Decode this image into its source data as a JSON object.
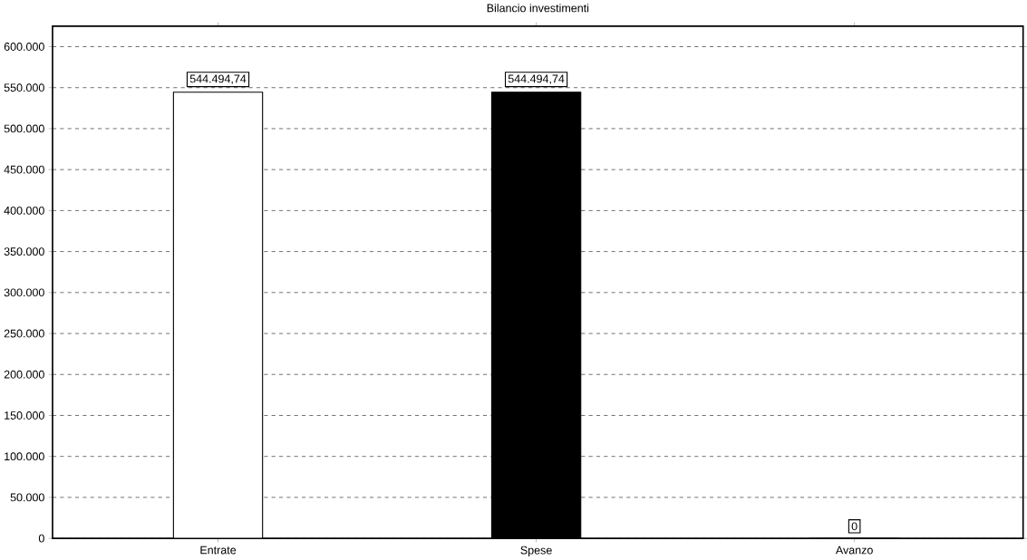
{
  "chart_data": {
    "type": "bar",
    "title": "Bilancio investimenti",
    "categories": [
      "Entrate",
      "Spese",
      "Avanzo"
    ],
    "values": [
      544494.74,
      544494.74,
      0
    ],
    "colors": [
      "#ffffff",
      "#000000",
      "#ffffff"
    ],
    "value_labels": [
      "544.494,74",
      "544.494,74",
      "0"
    ],
    "ylim": [
      0,
      625000
    ],
    "yticks": [
      {
        "value": 0,
        "label": "0"
      },
      {
        "value": 50000,
        "label": "50.000"
      },
      {
        "value": 100000,
        "label": "100.000"
      },
      {
        "value": 150000,
        "label": "150.000"
      },
      {
        "value": 200000,
        "label": "200.000"
      },
      {
        "value": 250000,
        "label": "250.000"
      },
      {
        "value": 300000,
        "label": "300.000"
      },
      {
        "value": 350000,
        "label": "350.000"
      },
      {
        "value": 400000,
        "label": "400.000"
      },
      {
        "value": 450000,
        "label": "450.000"
      },
      {
        "value": 500000,
        "label": "500.000"
      },
      {
        "value": 550000,
        "label": "550.000"
      },
      {
        "value": 600000,
        "label": "600.000"
      }
    ],
    "grid": "y"
  }
}
